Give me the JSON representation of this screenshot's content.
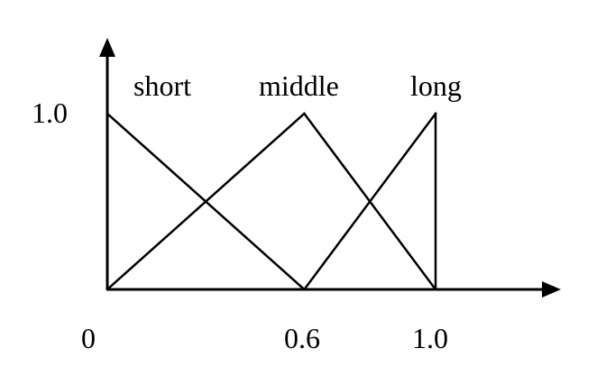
{
  "chart_data": {
    "type": "line",
    "series": [
      {
        "name": "short",
        "x": [
          0,
          0.6
        ],
        "y": [
          1,
          0
        ]
      },
      {
        "name": "middle",
        "x": [
          0,
          0.6,
          1.0
        ],
        "y": [
          0,
          1,
          0
        ]
      },
      {
        "name": "long",
        "x": [
          0.6,
          1.0,
          1.0
        ],
        "y": [
          0,
          1,
          0
        ]
      }
    ],
    "x_ticks": [
      "0",
      "0.6",
      "1.0"
    ],
    "y_ticks": [
      "1.0"
    ],
    "xlim": [
      0,
      1.35
    ],
    "ylim": [
      0,
      1.45
    ],
    "grid": false,
    "color": "#000000"
  }
}
